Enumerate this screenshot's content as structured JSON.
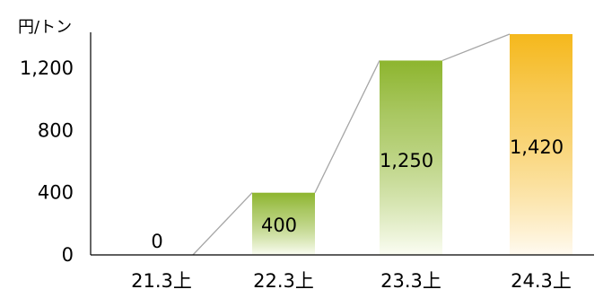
{
  "chart_data": {
    "type": "bar",
    "title": "",
    "unit_label": "円/トン",
    "xlabel": "",
    "ylabel": "",
    "categories": [
      "21.3上",
      "22.3上",
      "23.3上",
      "24.3上"
    ],
    "values": [
      0,
      400,
      1250,
      1420
    ],
    "value_labels": [
      "0",
      "400",
      "1,250",
      "1,420"
    ],
    "ylim": [
      0,
      1420
    ],
    "yticks": [
      0,
      400,
      800,
      1200
    ],
    "ytick_labels": [
      "0",
      "400",
      "800",
      "1,200"
    ],
    "grid": false,
    "legend": "none",
    "connector_lines": true,
    "bar_colors": [
      {
        "top": "#8db52e",
        "bottom": "#fbfdf3"
      },
      {
        "top": "#8db52e",
        "bottom": "#fbfdf3"
      },
      {
        "top": "#8db52e",
        "bottom": "#fbfdf3"
      },
      {
        "top": "#f5b81c",
        "bottom": "#fffaf0"
      }
    ],
    "connector_color": "#a6a6a6",
    "axis_color": "#000000"
  }
}
